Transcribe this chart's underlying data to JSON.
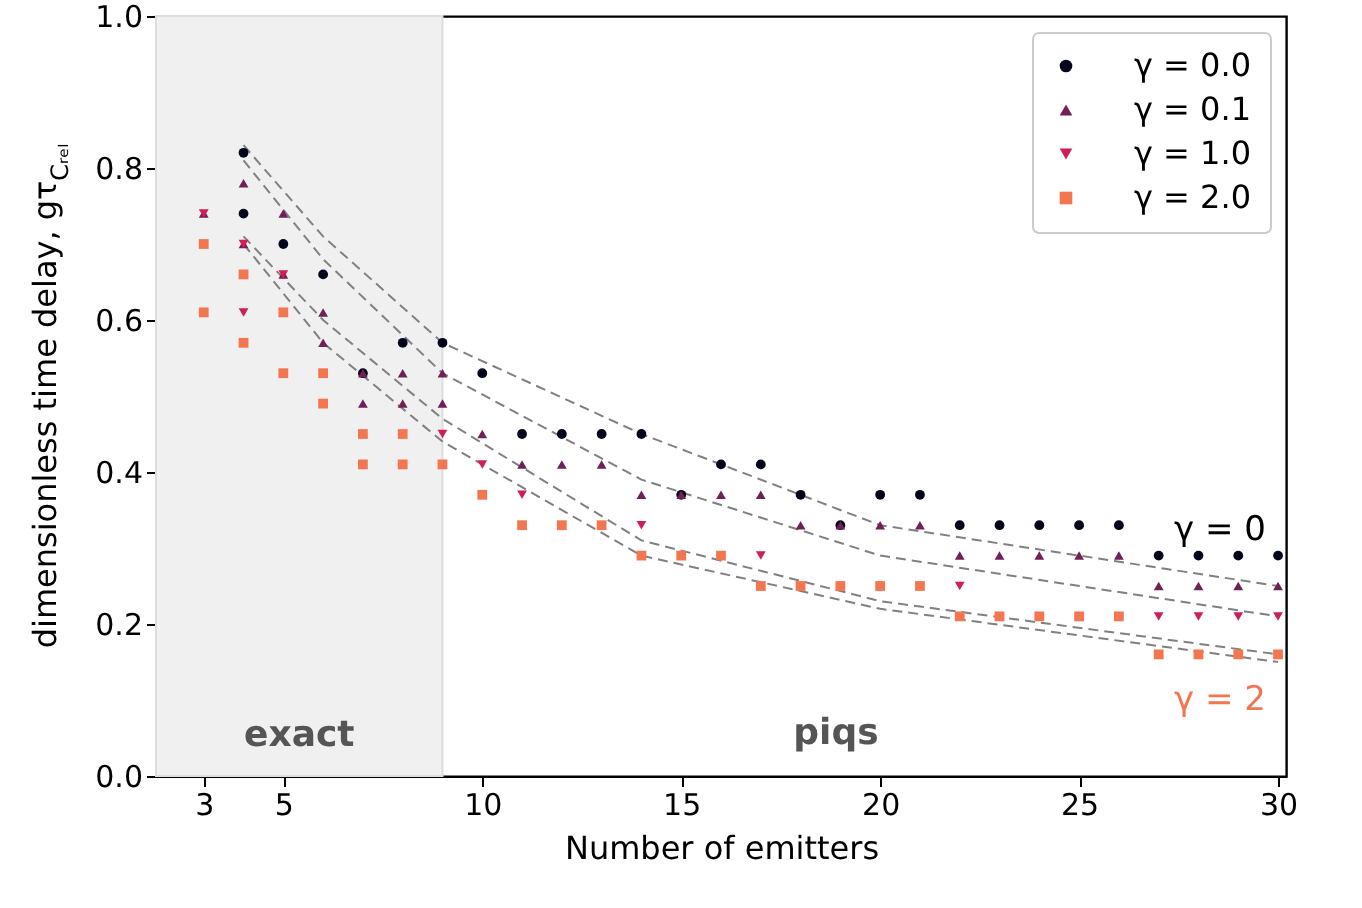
{
  "chart_data": {
    "type": "scatter",
    "xlabel": "Number of emitters",
    "ylabel": "dimensionless time delay,  gτ$_{Cᵣₑₗ}$",
    "xlim": [
      1.8,
      30.2
    ],
    "xticks": [
      3,
      5,
      10,
      15,
      20,
      25,
      30
    ],
    "ylim": [
      0,
      1
    ],
    "yticks": [
      {
        "value": 0,
        "label": "0.0"
      },
      {
        "value": 0.2,
        "label": "0.2"
      },
      {
        "value": 0.4,
        "label": "0.4"
      },
      {
        "value": 0.6,
        "label": "0.6"
      },
      {
        "value": 0.8,
        "label": "0.8"
      },
      {
        "value": 1,
        "label": "1.0"
      }
    ],
    "grid": false,
    "legend": "top right",
    "bands": [
      {
        "axis": "x",
        "from": 1.8,
        "to": 9,
        "label": "exact",
        "color": "#f0f0f0"
      }
    ],
    "annotations": [
      "piqs",
      "γ = 0",
      "γ = 2"
    ],
    "series": [
      {
        "name": "γ = 0.0",
        "color": "#03051a",
        "marker": "circle",
        "x": [
          4,
          4,
          5,
          6,
          7,
          8,
          9,
          10,
          11,
          12,
          13,
          14,
          15,
          16,
          17,
          18,
          19,
          20,
          21,
          22,
          23,
          24,
          25,
          26,
          27,
          28,
          29,
          30
        ],
        "values": [
          0.82,
          0.74,
          0.7,
          0.66,
          0.53,
          0.57,
          0.57,
          0.53,
          0.45,
          0.45,
          0.45,
          0.45,
          0.37,
          0.41,
          0.41,
          0.37,
          0.33,
          0.37,
          0.37,
          0.33,
          0.33,
          0.33,
          0.33,
          0.33,
          0.29,
          0.29,
          0.29,
          0.29
        ]
      },
      {
        "name": "γ = 0.1",
        "color": "#701f57",
        "marker": "triangle",
        "x": [
          3,
          4,
          4,
          5,
          5,
          6,
          6,
          7,
          7,
          8,
          8,
          9,
          9,
          10,
          11,
          12,
          13,
          14,
          15,
          16,
          17,
          18,
          19,
          20,
          21,
          22,
          23,
          24,
          25,
          26,
          27,
          28,
          29,
          30
        ],
        "values": [
          0.74,
          0.78,
          0.7,
          0.74,
          0.66,
          0.61,
          0.57,
          0.53,
          0.49,
          0.53,
          0.49,
          0.53,
          0.49,
          0.45,
          0.41,
          0.41,
          0.41,
          0.37,
          0.37,
          0.37,
          0.37,
          0.33,
          0.33,
          0.33,
          0.33,
          0.29,
          0.29,
          0.29,
          0.29,
          0.29,
          0.25,
          0.25,
          0.25,
          0.25
        ]
      },
      {
        "name": "γ = 1.0",
        "color": "#d11f55",
        "marker": "triangle-down",
        "x": [
          3,
          4,
          4,
          5,
          9,
          10,
          11,
          14,
          17,
          22,
          27,
          28,
          29,
          30
        ],
        "values": [
          0.74,
          0.7,
          0.61,
          0.66,
          0.45,
          0.41,
          0.37,
          0.33,
          0.29,
          0.25,
          0.21,
          0.21,
          0.21,
          0.21
        ]
      },
      {
        "name": "γ = 2.0",
        "color": "#f37651",
        "marker": "square",
        "x": [
          3,
          3,
          4,
          4,
          5,
          5,
          6,
          6,
          7,
          7,
          8,
          8,
          9,
          10,
          11,
          12,
          13,
          14,
          15,
          16,
          17,
          18,
          19,
          20,
          21,
          22,
          23,
          24,
          25,
          26,
          27,
          28,
          29,
          30
        ],
        "values": [
          0.7,
          0.61,
          0.66,
          0.57,
          0.61,
          0.53,
          0.53,
          0.49,
          0.45,
          0.41,
          0.45,
          0.41,
          0.41,
          0.37,
          0.33,
          0.33,
          0.33,
          0.29,
          0.29,
          0.29,
          0.25,
          0.25,
          0.25,
          0.25,
          0.25,
          0.21,
          0.21,
          0.21,
          0.21,
          0.21,
          0.16,
          0.16,
          0.16,
          0.16
        ]
      },
      {
        "type": "line",
        "color": "#808080",
        "line_style": "dashed",
        "x": [
          4,
          6,
          9,
          14,
          20,
          30
        ],
        "values": [
          0.83,
          0.71,
          0.57,
          0.45,
          0.33,
          0.25
        ]
      },
      {
        "type": "line",
        "color": "#808080",
        "line_style": "dashed",
        "x": [
          4,
          6,
          9,
          14,
          20,
          30
        ],
        "values": [
          0.81,
          0.68,
          0.53,
          0.39,
          0.29,
          0.21
        ]
      },
      {
        "type": "line",
        "color": "#808080",
        "line_style": "dashed",
        "x": [
          4,
          6,
          9,
          14,
          20,
          30
        ],
        "values": [
          0.71,
          0.6,
          0.47,
          0.31,
          0.23,
          0.16
        ]
      },
      {
        "type": "line",
        "color": "#808080",
        "line_style": "dashed",
        "x": [
          4,
          6,
          9,
          14,
          20,
          30
        ],
        "values": [
          0.7,
          0.57,
          0.44,
          0.29,
          0.22,
          0.15
        ]
      }
    ]
  }
}
